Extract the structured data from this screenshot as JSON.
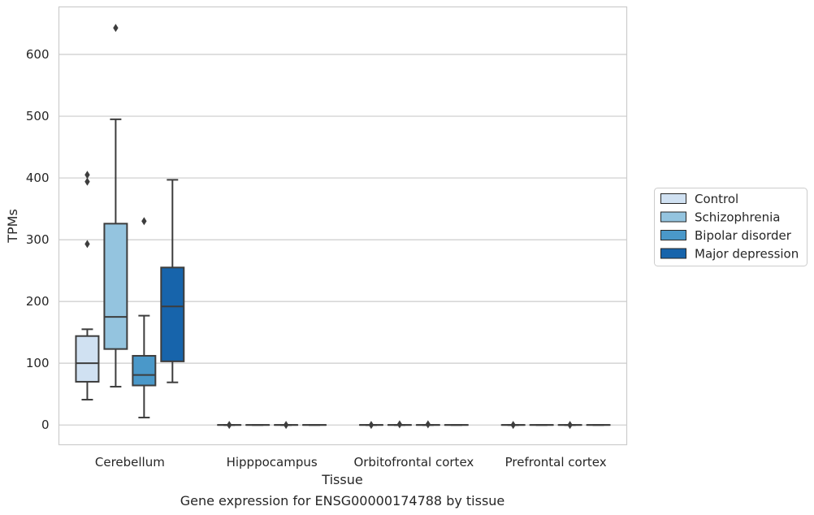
{
  "chart_data": {
    "type": "box",
    "caption": "Gene expression for ENSG00000174788 by tissue",
    "xlabel": "Tissue",
    "ylabel": "TPMs",
    "ylim": [
      -32,
      677
    ],
    "yticks": [
      0,
      100,
      200,
      300,
      400,
      500,
      600
    ],
    "grid": "horizontal",
    "legend_position": "right",
    "categories": [
      "Cerebellum",
      "Hipppocampus",
      "Orbitofrontal cortex",
      "Prefrontal cortex"
    ],
    "series": [
      {
        "name": "Control",
        "color": "#d0e1f2",
        "boxes": [
          {
            "min": 41,
            "q1": 70,
            "median": 100,
            "q3": 144,
            "max": 155,
            "outliers": [
              293,
              394,
              405
            ]
          },
          {
            "min": 0,
            "q1": 0,
            "median": 0,
            "q3": 0,
            "max": 0,
            "outliers": [
              0
            ]
          },
          {
            "min": 0,
            "q1": 0,
            "median": 0,
            "q3": 0,
            "max": 0,
            "outliers": [
              0
            ]
          },
          {
            "min": 0,
            "q1": 0,
            "median": 0,
            "q3": 0,
            "max": 0,
            "outliers": [
              0
            ]
          }
        ]
      },
      {
        "name": "Schizophrenia",
        "color": "#94c4df",
        "boxes": [
          {
            "min": 62,
            "q1": 123,
            "median": 175,
            "q3": 326,
            "max": 495,
            "outliers": [
              643
            ]
          },
          {
            "min": 0,
            "q1": 0,
            "median": 0,
            "q3": 0,
            "max": 0,
            "outliers": []
          },
          {
            "min": 0,
            "q1": 0,
            "median": 0,
            "q3": 0,
            "max": 0,
            "outliers": [
              1
            ]
          },
          {
            "min": 0,
            "q1": 0,
            "median": 0,
            "q3": 0,
            "max": 0,
            "outliers": []
          }
        ]
      },
      {
        "name": "Bipolar disorder",
        "color": "#4a98c9",
        "boxes": [
          {
            "min": 12,
            "q1": 64,
            "median": 81,
            "q3": 112,
            "max": 177,
            "outliers": [
              330
            ]
          },
          {
            "min": 0,
            "q1": 0,
            "median": 0,
            "q3": 0,
            "max": 0,
            "outliers": [
              0
            ]
          },
          {
            "min": 0,
            "q1": 0,
            "median": 0,
            "q3": 0,
            "max": 0,
            "outliers": [
              1
            ]
          },
          {
            "min": 0,
            "q1": 0,
            "median": 0,
            "q3": 0,
            "max": 0,
            "outliers": [
              0
            ]
          }
        ]
      },
      {
        "name": "Major depression",
        "color": "#1764ab",
        "boxes": [
          {
            "min": 69,
            "q1": 103,
            "median": 192,
            "q3": 255,
            "max": 397,
            "outliers": []
          },
          {
            "min": 0,
            "q1": 0,
            "median": 0,
            "q3": 0,
            "max": 0,
            "outliers": []
          },
          {
            "min": 0,
            "q1": 0,
            "median": 0,
            "q3": 0,
            "max": 0,
            "outliers": []
          },
          {
            "min": 0,
            "q1": 0,
            "median": 0,
            "q3": 0,
            "max": 0,
            "outliers": []
          }
        ]
      }
    ]
  }
}
